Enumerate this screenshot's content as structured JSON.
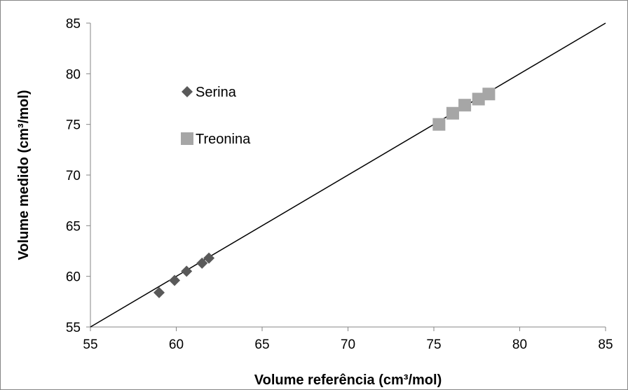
{
  "chart_data": {
    "type": "scatter",
    "title": "",
    "xlabel": "Volume referência (cm³/mol)",
    "ylabel": "Volume medido (cm³/mol)",
    "xlim": [
      55,
      85
    ],
    "ylim": [
      55,
      85
    ],
    "xticks": [
      55,
      60,
      65,
      70,
      75,
      80,
      85
    ],
    "yticks": [
      55,
      60,
      65,
      70,
      75,
      80,
      85
    ],
    "grid": false,
    "legend_position": "upper-left",
    "series": [
      {
        "name": "Serina",
        "marker": "diamond",
        "color": "#595959",
        "points": [
          [
            59.0,
            58.4
          ],
          [
            59.9,
            59.6
          ],
          [
            60.6,
            60.5
          ],
          [
            61.5,
            61.3
          ],
          [
            61.9,
            61.8
          ]
        ]
      },
      {
        "name": "Treonina",
        "marker": "square",
        "color": "#a6a6a6",
        "points": [
          [
            75.3,
            75.0
          ],
          [
            76.1,
            76.1
          ],
          [
            76.8,
            76.9
          ],
          [
            77.6,
            77.5
          ],
          [
            78.2,
            78.0
          ]
        ]
      }
    ],
    "reference_line": {
      "x": [
        55,
        85
      ],
      "y": [
        55,
        85
      ],
      "color": "#000000"
    }
  }
}
